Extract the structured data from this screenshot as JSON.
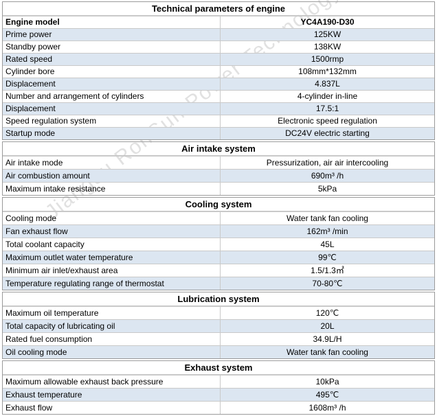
{
  "watermark": "Jiangsu RonSun Power Technology Co.,",
  "engine": {
    "title": "Technical parameters of engine",
    "header": {
      "key": "Engine model",
      "value": "YC4A190-D30"
    },
    "rows": [
      {
        "key": "Prime power",
        "value": "125KW"
      },
      {
        "key": "Standby power",
        "value": "138KW"
      },
      {
        "key": "Rated speed",
        "value": "1500rmp"
      },
      {
        "key": "Cylinder bore",
        "value": "108mm*132mm"
      },
      {
        "key": "Displacement",
        "value": "4.837L"
      },
      {
        "key": "Number and arrangement of cylinders",
        "value": "4-cylinder in-line"
      },
      {
        "key": "Displacement",
        "value": "17.5:1"
      },
      {
        "key": "Speed regulation system",
        "value": "Electronic speed regulation"
      },
      {
        "key": "Startup mode",
        "value": "DC24V electric starting"
      }
    ]
  },
  "air_intake": {
    "title": "Air intake system",
    "rows": [
      {
        "key": "Air intake mode",
        "value": "Pressurization, air air intercooling"
      },
      {
        "key": "Air combustion amount",
        "value": "690m³ /h"
      },
      {
        "key": "Maximum intake resistance",
        "value": "5kPa"
      }
    ]
  },
  "cooling": {
    "title": "Cooling system",
    "rows": [
      {
        "key": "Cooling mode",
        "value": "Water tank fan cooling"
      },
      {
        "key": "Fan exhaust flow",
        "value": "162m³  /min"
      },
      {
        "key": "Total coolant capacity",
        "value": "45L"
      },
      {
        "key": "Maximum outlet water temperature",
        "value": "99℃"
      },
      {
        "key": "Minimum air inlet/exhaust area",
        "value": "1.5/1.3㎡"
      },
      {
        "key": "Temperature regulating range of thermostat",
        "value": "70-80℃"
      }
    ]
  },
  "lubrication": {
    "title": "Lubrication system",
    "rows": [
      {
        "key": "Maximum oil temperature",
        "value": "120℃"
      },
      {
        "key": "Total capacity of lubricating oil",
        "value": "20L"
      },
      {
        "key": "Rated fuel consumption",
        "value": "34.9L/H"
      },
      {
        "key": "Oil cooling mode",
        "value": "Water tank fan cooling"
      }
    ]
  },
  "exhaust": {
    "title": "Exhaust system",
    "rows": [
      {
        "key": "Maximum allowable exhaust back pressure",
        "value": "10kPa"
      },
      {
        "key": "Exhaust temperature",
        "value": "495℃"
      },
      {
        "key": "Exhaust flow",
        "value": "1608m³ /h"
      }
    ]
  }
}
